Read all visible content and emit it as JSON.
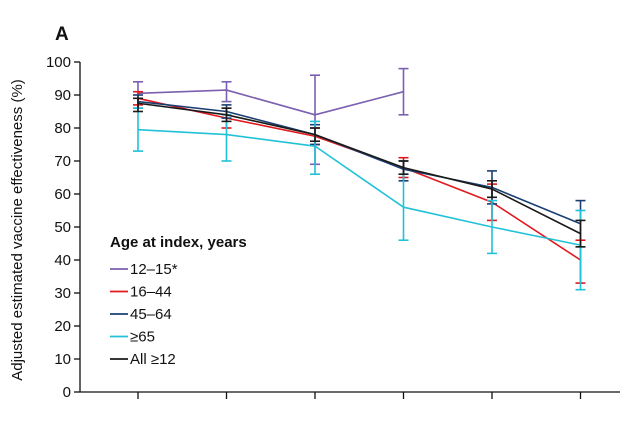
{
  "panel_label": "A",
  "chart_data": {
    "type": "line",
    "ylabel": "Adjusted estimated vaccine effectiveness (%)",
    "xlabel": "",
    "ylim": [
      0,
      100
    ],
    "yticks": [
      0,
      10,
      20,
      30,
      40,
      50,
      60,
      70,
      80,
      90,
      100
    ],
    "x_positions": [
      1,
      2,
      3,
      4,
      5,
      6
    ],
    "x_tick_labels": [],
    "grid": false,
    "legend": {
      "title": "Age at index, years",
      "placement": "center-left"
    },
    "series": [
      {
        "name": "12–15*",
        "color": "#7b5fb0",
        "values": [
          90.5,
          91.5,
          84,
          91,
          null,
          null
        ],
        "lower": [
          86,
          88,
          69,
          84,
          null,
          null
        ],
        "upper": [
          94,
          94,
          96,
          98,
          null,
          null
        ]
      },
      {
        "name": "16–44",
        "color": "#e0191f",
        "values": [
          89,
          83,
          77.5,
          68,
          57.5,
          40
        ],
        "lower": [
          87,
          80,
          75,
          65,
          52,
          33
        ],
        "upper": [
          91,
          86,
          80,
          71,
          63,
          46
        ]
      },
      {
        "name": "45–64",
        "color": "#1c3f73",
        "values": [
          88,
          85,
          78,
          67.5,
          62,
          51
        ],
        "lower": [
          86,
          83,
          75,
          64,
          57,
          44
        ],
        "upper": [
          90,
          87,
          81,
          70,
          67,
          58
        ]
      },
      {
        "name": "≥65",
        "color": "#21c2d8",
        "values": [
          79.5,
          78,
          74.5,
          56,
          50,
          44.5
        ],
        "lower": [
          73,
          70,
          66,
          46,
          42,
          31
        ],
        "upper": [
          86,
          84,
          82,
          66,
          58,
          55
        ]
      },
      {
        "name": "All ≥12",
        "color": "#1a1a1a",
        "values": [
          87.5,
          84,
          78,
          68,
          61.5,
          48
        ],
        "lower": [
          85,
          82,
          76,
          66,
          59,
          44
        ],
        "upper": [
          89,
          86,
          80,
          70,
          64,
          52
        ]
      }
    ]
  }
}
